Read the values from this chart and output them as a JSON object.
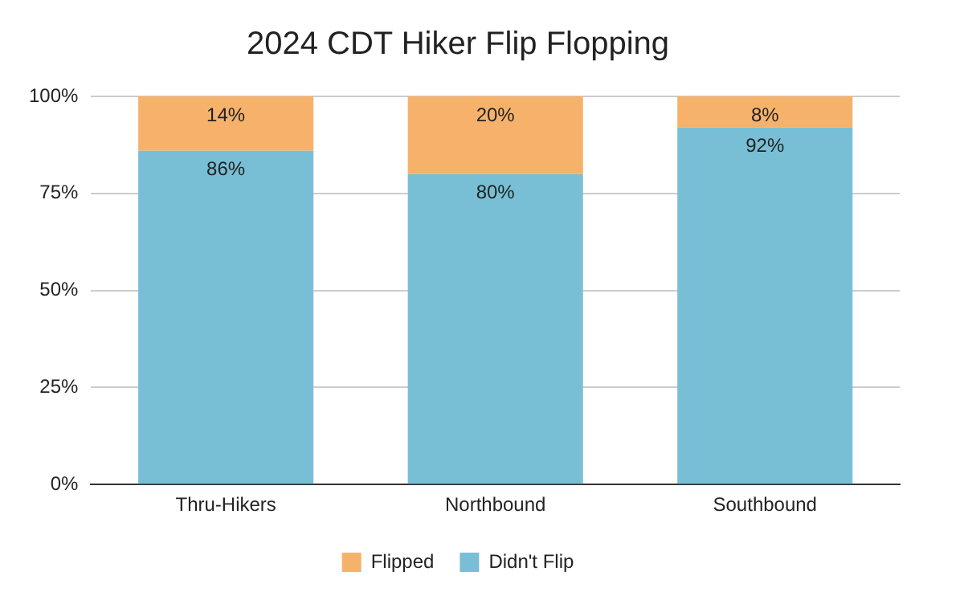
{
  "chart_data": {
    "type": "bar",
    "title": "2024 CDT Hiker Flip Flopping",
    "categories": [
      "Thru-Hikers",
      "Northbound",
      "Southbound"
    ],
    "stacked": true,
    "series": [
      {
        "name": "Didn't Flip",
        "color": "#78bfd6",
        "values": [
          86,
          80,
          92
        ],
        "value_labels": [
          "86%",
          "80%",
          "92%"
        ]
      },
      {
        "name": "Flipped",
        "color": "#f6b26b",
        "values": [
          14,
          20,
          8
        ],
        "value_labels": [
          "14%",
          "20%",
          "8%"
        ]
      }
    ],
    "ylim": [
      0,
      100
    ],
    "yticks": [
      {
        "value": 0,
        "label": "0%"
      },
      {
        "value": 25,
        "label": "25%"
      },
      {
        "value": 50,
        "label": "50%"
      },
      {
        "value": 75,
        "label": "75%"
      },
      {
        "value": 100,
        "label": "100%"
      }
    ],
    "grid": "y",
    "legend": "bottom"
  }
}
